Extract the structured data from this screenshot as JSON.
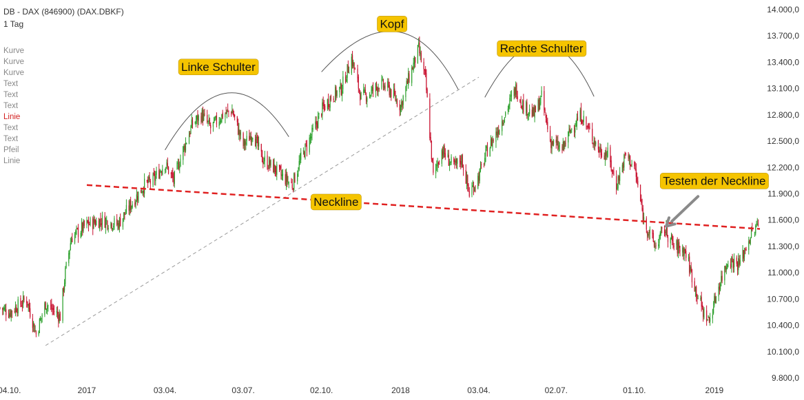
{
  "header": {
    "title": "DB - DAX (846900) (DAX.DBKF)",
    "interval": "1 Tag"
  },
  "sidebar": {
    "items": [
      {
        "label": "Kurve",
        "active": false
      },
      {
        "label": "Kurve",
        "active": false
      },
      {
        "label": "Kurve",
        "active": false
      },
      {
        "label": "Text",
        "active": false
      },
      {
        "label": "Text",
        "active": false
      },
      {
        "label": "Text",
        "active": false
      },
      {
        "label": "Linie",
        "active": true
      },
      {
        "label": "Text",
        "active": false
      },
      {
        "label": "Text",
        "active": false
      },
      {
        "label": "Pfeil",
        "active": false
      },
      {
        "label": "Linie",
        "active": false
      }
    ]
  },
  "colors": {
    "up": "#2ca02c",
    "down": "#c8102e",
    "neckline": "#e02020",
    "label_bg": "#f5c400",
    "trendline": "#999999",
    "arc": "#555555",
    "arrow": "#8a8a8a"
  },
  "chart_data": {
    "type": "line",
    "title": "DB - DAX (846900) (DAX.DBKF)",
    "interval": "1 Tag",
    "ylim": [
      9800,
      14000
    ],
    "yticks": [
      "14.000,0",
      "13.700,0",
      "13.400,0",
      "13.100,0",
      "12.800,0",
      "12.500,0",
      "12.200,0",
      "11.900,0",
      "11.600,0",
      "11.300,0",
      "11.000,0",
      "10.700,0",
      "10.400,0",
      "10.100,0",
      "9.800,0"
    ],
    "ytick_values": [
      14000,
      13700,
      13400,
      13100,
      12800,
      12500,
      12200,
      11900,
      11600,
      11300,
      11000,
      10700,
      10400,
      10100,
      9800
    ],
    "xticks": [
      "04.10.",
      "2017",
      "03.04.",
      "03.07.",
      "02.10.",
      "2018",
      "03.04.",
      "02.07.",
      "01.10.",
      "2019"
    ],
    "xtick_dates": [
      "2016-10-04",
      "2017-01-02",
      "2017-04-03",
      "2017-07-03",
      "2017-10-02",
      "2018-01-02",
      "2018-04-03",
      "2018-07-02",
      "2018-10-01",
      "2019-01-02"
    ],
    "xlim": [
      "2016-09-23",
      "2019-02-28"
    ],
    "series": [
      {
        "name": "",
        "style": "candles",
        "points": [
          [
            "2016-09-23",
            10600
          ],
          [
            "2016-10-04",
            10550
          ],
          [
            "2016-10-24",
            10700
          ],
          [
            "2016-11-04",
            10300
          ],
          [
            "2016-11-15",
            10650
          ],
          [
            "2016-12-02",
            10500
          ],
          [
            "2016-12-08",
            11000
          ],
          [
            "2016-12-15",
            11400
          ],
          [
            "2017-01-02",
            11550
          ],
          [
            "2017-01-20",
            11600
          ],
          [
            "2017-02-07",
            11550
          ],
          [
            "2017-02-24",
            11800
          ],
          [
            "2017-03-10",
            12000
          ],
          [
            "2017-03-20",
            12050
          ],
          [
            "2017-04-03",
            12250
          ],
          [
            "2017-04-13",
            12050
          ],
          [
            "2017-04-24",
            12400
          ],
          [
            "2017-05-05",
            12700
          ],
          [
            "2017-05-16",
            12800
          ],
          [
            "2017-05-26",
            12650
          ],
          [
            "2017-06-09",
            12800
          ],
          [
            "2017-06-20",
            12850
          ],
          [
            "2017-07-03",
            12450
          ],
          [
            "2017-07-14",
            12600
          ],
          [
            "2017-07-25",
            12300
          ],
          [
            "2017-08-07",
            12200
          ],
          [
            "2017-08-17",
            12100
          ],
          [
            "2017-08-29",
            12000
          ],
          [
            "2017-09-08",
            12300
          ],
          [
            "2017-09-22",
            12600
          ],
          [
            "2017-10-02",
            12850
          ],
          [
            "2017-10-13",
            13000
          ],
          [
            "2017-10-25",
            13100
          ],
          [
            "2017-11-06",
            13450
          ],
          [
            "2017-11-17",
            13000
          ],
          [
            "2017-11-28",
            13050
          ],
          [
            "2017-12-08",
            13150
          ],
          [
            "2017-12-19",
            13100
          ],
          [
            "2018-01-02",
            12900
          ],
          [
            "2018-01-11",
            13200
          ],
          [
            "2018-01-23",
            13550
          ],
          [
            "2018-01-31",
            13200
          ],
          [
            "2018-02-09",
            12100
          ],
          [
            "2018-02-19",
            12400
          ],
          [
            "2018-03-05",
            12200
          ],
          [
            "2018-03-14",
            12300
          ],
          [
            "2018-03-23",
            11900
          ],
          [
            "2018-04-03",
            12100
          ],
          [
            "2018-04-13",
            12400
          ],
          [
            "2018-04-24",
            12600
          ],
          [
            "2018-05-07",
            12900
          ],
          [
            "2018-05-16",
            13100
          ],
          [
            "2018-05-25",
            12900
          ],
          [
            "2018-06-06",
            12800
          ],
          [
            "2018-06-15",
            13000
          ],
          [
            "2018-06-25",
            12500
          ],
          [
            "2018-07-09",
            12400
          ],
          [
            "2018-07-20",
            12650
          ],
          [
            "2018-07-31",
            12800
          ],
          [
            "2018-08-10",
            12600
          ],
          [
            "2018-08-21",
            12400
          ],
          [
            "2018-08-31",
            12350
          ],
          [
            "2018-09-10",
            12000
          ],
          [
            "2018-09-21",
            12350
          ],
          [
            "2018-10-01",
            12200
          ],
          [
            "2018-10-12",
            11600
          ],
          [
            "2018-10-25",
            11300
          ],
          [
            "2018-11-05",
            11500
          ],
          [
            "2018-11-16",
            11300
          ],
          [
            "2018-11-29",
            11250
          ],
          [
            "2018-12-10",
            10850
          ],
          [
            "2018-12-20",
            10550
          ],
          [
            "2018-12-27",
            10450
          ],
          [
            "2019-01-07",
            10850
          ],
          [
            "2019-01-18",
            11150
          ],
          [
            "2019-01-31",
            11100
          ],
          [
            "2019-02-12",
            11400
          ],
          [
            "2019-02-22",
            11550
          ]
        ]
      }
    ],
    "neckline": {
      "start": [
        "2017-01-02",
        12000
      ],
      "end": [
        "2019-02-24",
        11500
      ]
    },
    "trendline": {
      "start": [
        "2016-11-15",
        10170
      ],
      "end": [
        "2018-04-03",
        13230
      ]
    },
    "shoulder_arcs": [
      {
        "label": "Linke Schulter",
        "from": [
          "2017-04-03",
          12400
        ],
        "peak": [
          "2017-06-15",
          13050
        ],
        "to": [
          "2017-08-25",
          12550
        ]
      },
      {
        "label": "Kopf",
        "from": [
          "2017-10-02",
          13290
        ],
        "peak": [
          "2017-12-28",
          13750
        ],
        "to": [
          "2018-03-10",
          13090
        ]
      },
      {
        "label": "Rechte Schulter",
        "from": [
          "2018-04-10",
          13000
        ],
        "peak": [
          "2018-06-15",
          13620
        ],
        "to": [
          "2018-08-15",
          13010
        ]
      }
    ],
    "annotations": [
      {
        "text": "Linke Schulter",
        "at": [
          "2017-06-04",
          13350
        ]
      },
      {
        "text": "Kopf",
        "at": [
          "2017-12-23",
          13840
        ]
      },
      {
        "text": "Neckline",
        "at": [
          "2017-10-19",
          11810
        ]
      },
      {
        "text": "Rechte Schulter",
        "at": [
          "2018-06-15",
          13560
        ]
      },
      {
        "text": "Testen der Neckline",
        "at": [
          "2019-01-02",
          12050
        ]
      }
    ],
    "arrow": {
      "from": [
        "2018-12-14",
        11870
      ],
      "to": [
        "2018-11-07",
        11530
      ]
    }
  }
}
